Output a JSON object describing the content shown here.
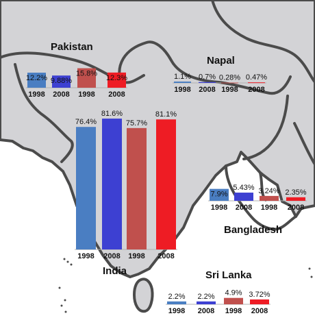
{
  "colors": {
    "land": "#d3d3d6",
    "border": "#4b4b4b",
    "sea": "#ffffff",
    "series": [
      "#4a7ec2",
      "#3d40d2",
      "#c0504d",
      "#ee1c24"
    ]
  },
  "chart_data": [
    {
      "type": "bar",
      "country": "Pakistan",
      "categories": [
        "1998",
        "2008",
        "1998",
        "2008"
      ],
      "values": [
        12.2,
        9.88,
        15.8,
        12.3
      ],
      "labels": [
        "12.2%",
        "9.88%",
        "15.8%",
        "12.3%"
      ]
    },
    {
      "type": "bar",
      "country": "Napal",
      "categories": [
        "1998",
        "2008",
        "1998",
        "2008"
      ],
      "values": [
        1.1,
        0.7,
        0.28,
        0.47
      ],
      "labels": [
        "1.1%",
        "0.7%",
        "0.28%",
        "0.47%"
      ]
    },
    {
      "type": "bar",
      "country": "India",
      "categories": [
        "1998",
        "2008",
        "1998",
        "2008"
      ],
      "values": [
        76.4,
        81.6,
        75.7,
        81.1
      ],
      "labels": [
        "76.4%",
        "81.6%",
        "75.7%",
        "81.1%"
      ]
    },
    {
      "type": "bar",
      "country": "Bangladesh",
      "categories": [
        "1998",
        "2008",
        "1998",
        "2008"
      ],
      "values": [
        7.9,
        5.43,
        3.24,
        2.35
      ],
      "labels": [
        "7.9%",
        "5.43%",
        "3.24%",
        "2.35%"
      ]
    },
    {
      "type": "bar",
      "country": "Sri Lanka",
      "categories": [
        "1998",
        "2008",
        "1998",
        "2008"
      ],
      "values": [
        2.2,
        2.2,
        4.9,
        3.72
      ],
      "labels": [
        "2.2%",
        "2.2%",
        "4.9%",
        "3.72%"
      ]
    }
  ]
}
